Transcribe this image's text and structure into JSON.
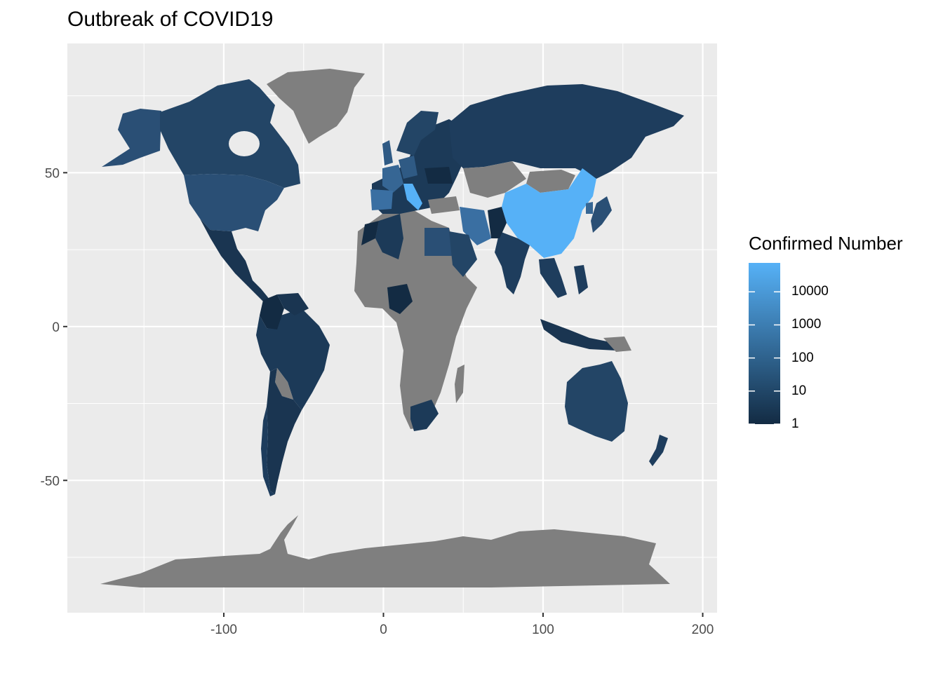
{
  "title": "Outbreak of COVID19",
  "axes": {
    "x_ticks": [
      {
        "value": -100,
        "label": "-100"
      },
      {
        "value": 0,
        "label": "0"
      },
      {
        "value": 100,
        "label": "100"
      },
      {
        "value": 200,
        "label": "200"
      }
    ],
    "y_ticks": [
      {
        "value": 50,
        "label": "50"
      },
      {
        "value": 0,
        "label": "0"
      },
      {
        "value": -50,
        "label": "-50"
      }
    ],
    "x_minor": [
      -150,
      -50,
      50,
      150
    ],
    "y_minor": [
      75,
      25,
      -25,
      -75
    ],
    "xlim": [
      -198,
      209
    ],
    "ylim": [
      -93,
      92
    ]
  },
  "legend": {
    "title": "Confirmed Number",
    "scale": "log10",
    "low_color": "#132B43",
    "high_color": "#56B1F7",
    "max_value": 75000,
    "ticks": [
      {
        "value": 10000,
        "label": "10000"
      },
      {
        "value": 1000,
        "label": "1000"
      },
      {
        "value": 100,
        "label": "100"
      },
      {
        "value": 10,
        "label": "10"
      },
      {
        "value": 1,
        "label": "1"
      }
    ]
  },
  "colors": {
    "panel": "#EBEBEB",
    "grid": "#FFFFFF",
    "no_data": "#7F7F7F"
  }
}
